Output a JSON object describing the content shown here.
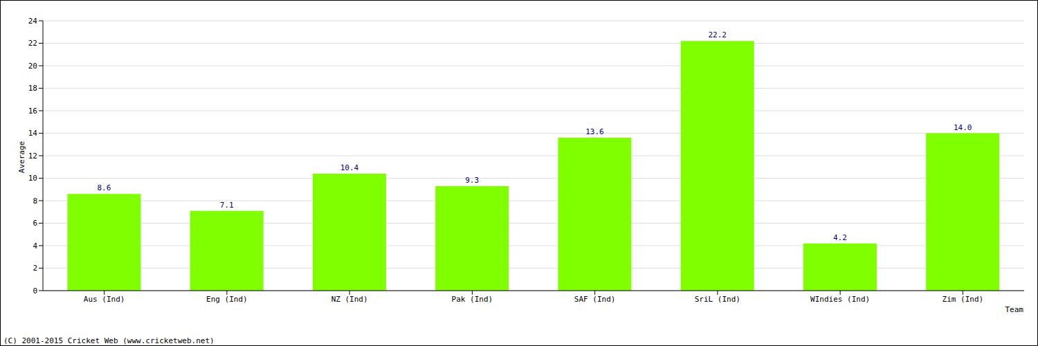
{
  "chart_data": {
    "type": "bar",
    "categories": [
      "Aus (Ind)",
      "Eng (Ind)",
      "NZ (Ind)",
      "Pak (Ind)",
      "SAF (Ind)",
      "SriL (Ind)",
      "WIndies (Ind)",
      "Zim (Ind)"
    ],
    "values": [
      8.6,
      7.1,
      10.4,
      9.3,
      13.6,
      22.2,
      4.2,
      14.0
    ],
    "value_labels": [
      "8.6",
      "7.1",
      "10.4",
      "9.3",
      "13.6",
      "22.2",
      "4.2",
      "14.0"
    ],
    "color": "#80ff00",
    "ylim": [
      0,
      24
    ],
    "yticks": [
      0,
      2,
      4,
      6,
      8,
      10,
      12,
      14,
      16,
      18,
      20,
      22,
      24
    ],
    "grid": true,
    "data_labels": true,
    "xlabel": "Team",
    "ylabel": "Average",
    "annotations": [
      "(C) 2001-2015 Cricket Web (www.cricketweb.net)"
    ]
  }
}
